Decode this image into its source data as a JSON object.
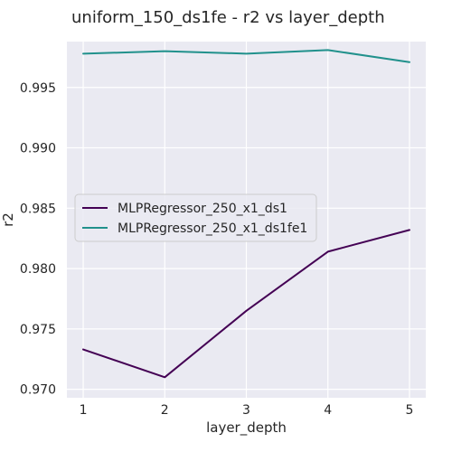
{
  "chart_data": {
    "type": "line",
    "title": "uniform_150_ds1fe - r2 vs layer_depth",
    "xlabel": "layer_depth",
    "ylabel": "r2",
    "x": [
      1,
      2,
      3,
      4,
      5
    ],
    "xticks": [
      "1",
      "2",
      "3",
      "4",
      "5"
    ],
    "yticks": [
      "0.970",
      "0.975",
      "0.980",
      "0.985",
      "0.990",
      "0.995"
    ],
    "ytick_values": [
      0.97,
      0.975,
      0.98,
      0.985,
      0.99,
      0.995
    ],
    "xlim": [
      0.8,
      5.2
    ],
    "ylim": [
      0.9693,
      0.9988
    ],
    "grid": true,
    "legend_position": "center-left",
    "background": "#eaeaf2",
    "series": [
      {
        "name": "MLPRegressor_250_x1_ds1",
        "color": "#440154",
        "values": [
          0.9733,
          0.971,
          0.9765,
          0.9814,
          0.9832
        ]
      },
      {
        "name": "MLPRegressor_250_x1_ds1fe1",
        "color": "#21918c",
        "values": [
          0.9978,
          0.998,
          0.9978,
          0.9981,
          0.9971
        ]
      }
    ]
  }
}
